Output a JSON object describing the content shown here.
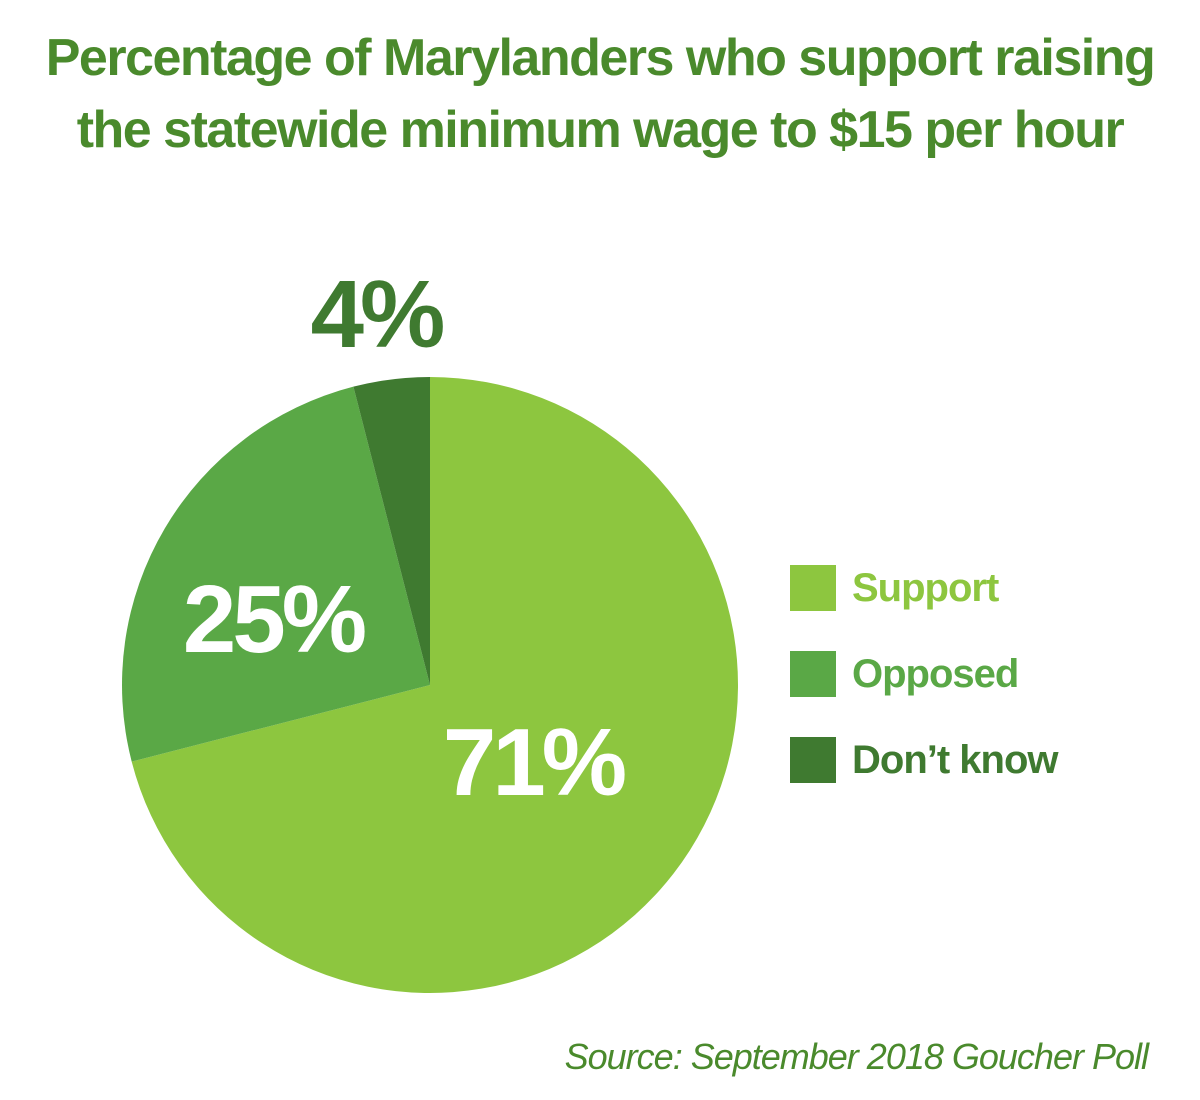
{
  "title_lines": [
    "Percentage of Marylanders who support raising",
    "the statewide minimum wage to $15 per hour"
  ],
  "source": "Source: September 2018 Goucher Poll",
  "colors": {
    "title": "#4a8a2c",
    "support": "#8dc63f",
    "opposed": "#5aa846",
    "dont_know": "#3f7a30",
    "label_light": "#ffffff"
  },
  "chart_data": {
    "type": "pie",
    "title": "Percentage of Marylanders who support raising the statewide minimum wage to $15 per hour",
    "unit": "%",
    "slices": [
      {
        "name": "Support",
        "value": 71,
        "label": "71%",
        "color": "#8dc63f"
      },
      {
        "name": "Opposed",
        "value": 25,
        "label": "25%",
        "color": "#5aa846"
      },
      {
        "name": "Don’t know",
        "value": 4,
        "label": "4%",
        "color": "#3f7a30"
      }
    ],
    "legend": "right"
  }
}
